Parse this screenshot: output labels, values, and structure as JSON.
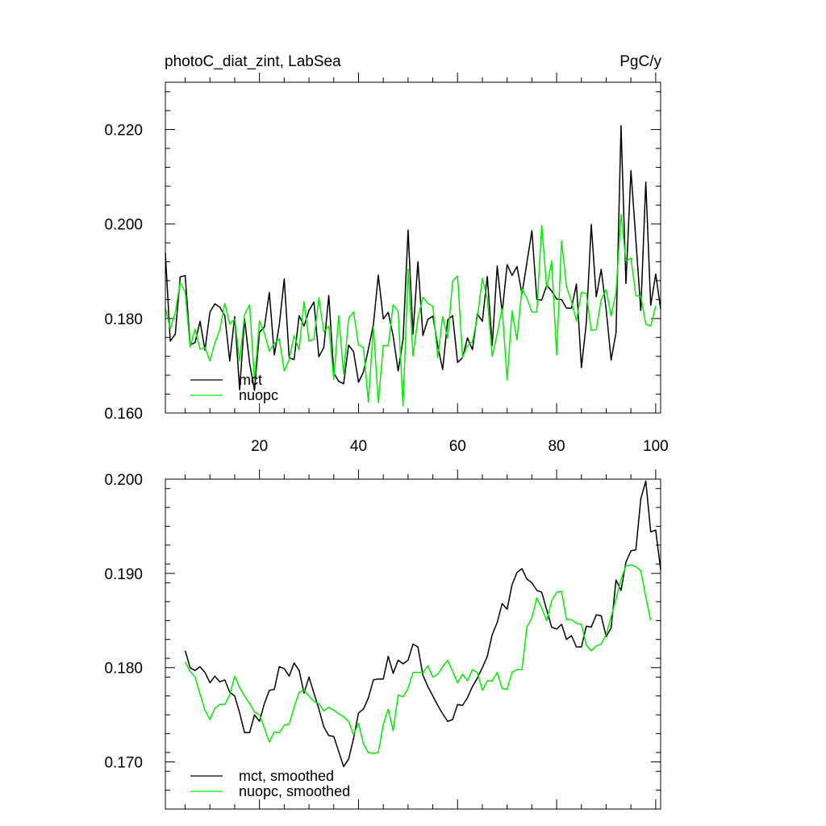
{
  "chart_data": [
    {
      "type": "line",
      "title": "photoC_diat_zint, LabSea",
      "units": "PgC/y",
      "xlim": [
        1,
        101
      ],
      "ylim": [
        0.16,
        0.23
      ],
      "x_ticks": [
        20,
        40,
        60,
        80,
        100
      ],
      "x_tick_labels": [
        "20",
        "40",
        "60",
        "80",
        "100"
      ],
      "y_ticks": [
        0.16,
        0.18,
        0.2,
        0.22
      ],
      "y_tick_labels": [
        "0.160",
        "0.180",
        "0.200",
        "0.220"
      ],
      "legend_position": "bottom-left",
      "x_start": 1,
      "series": [
        {
          "name": "mct",
          "color": "#000000",
          "values": [
            0.1938,
            0.1752,
            0.1767,
            0.1888,
            0.1891,
            0.1744,
            0.1749,
            0.1794,
            0.1733,
            0.1814,
            0.1831,
            0.1824,
            0.1806,
            0.171,
            0.1804,
            0.1649,
            0.1799,
            0.1706,
            0.1648,
            0.1771,
            0.1782,
            0.1855,
            0.1723,
            0.1786,
            0.1884,
            0.1717,
            0.1713,
            0.1806,
            0.1784,
            0.1817,
            0.1835,
            0.1719,
            0.1739,
            0.1849,
            0.1685,
            0.1667,
            0.1662,
            0.1744,
            0.173,
            0.1665,
            0.1687,
            0.1735,
            0.1787,
            0.1892,
            0.1799,
            0.1813,
            0.1763,
            0.1689,
            0.1756,
            0.1987,
            0.1767,
            0.192,
            0.1764,
            0.1798,
            0.1805,
            0.1742,
            0.1692,
            0.1797,
            0.1806,
            0.1707,
            0.1717,
            0.1759,
            0.1734,
            0.181,
            0.1794,
            0.1889,
            0.1743,
            0.1911,
            0.1812,
            0.1914,
            0.1891,
            0.191,
            0.1852,
            0.1918,
            0.1986,
            0.184,
            0.1839,
            0.1871,
            0.1858,
            0.1841,
            0.184,
            0.1822,
            0.1822,
            0.1873,
            0.1696,
            0.1791,
            0.1999,
            0.1846,
            0.1904,
            0.1819,
            0.1712,
            0.177,
            0.2208,
            0.1874,
            0.2113,
            0.1966,
            0.1817,
            0.2089,
            0.1828,
            0.1894,
            0.182
          ]
        },
        {
          "name": "nuopc",
          "color": "#00ee00",
          "values": [
            0.1822,
            0.1778,
            0.1813,
            0.1876,
            0.1856,
            0.1739,
            0.1778,
            0.1735,
            0.1739,
            0.171,
            0.1748,
            0.1776,
            0.1832,
            0.1788,
            0.1799,
            0.171,
            0.1808,
            0.1829,
            0.167,
            0.1795,
            0.1769,
            0.1731,
            0.1747,
            0.1757,
            0.1689,
            0.1713,
            0.1764,
            0.1733,
            0.1836,
            0.1752,
            0.1756,
            0.1844,
            0.1772,
            0.1784,
            0.1671,
            0.1806,
            0.1683,
            0.18,
            0.1814,
            0.1744,
            0.1739,
            0.1623,
            0.1782,
            0.1622,
            0.1743,
            0.1742,
            0.1829,
            0.1815,
            0.1615,
            0.1904,
            0.172,
            0.18,
            0.1845,
            0.1832,
            0.1826,
            0.1717,
            0.1804,
            0.1758,
            0.1879,
            0.189,
            0.1717,
            0.1743,
            0.1751,
            0.1802,
            0.1885,
            0.1842,
            0.172,
            0.1768,
            0.1822,
            0.167,
            0.1816,
            0.1755,
            0.1864,
            0.1843,
            0.1814,
            0.1814,
            0.1997,
            0.1863,
            0.1922,
            0.1723,
            0.1964,
            0.1867,
            0.1836,
            0.1795,
            0.1856,
            0.1853,
            0.1775,
            0.1776,
            0.184,
            0.1861,
            0.1805,
            0.1855,
            0.202,
            0.1921,
            0.1928,
            0.1848,
            0.1847,
            0.1788,
            0.1784,
            0.1826
          ]
        }
      ]
    },
    {
      "type": "line",
      "title": "",
      "units": "",
      "xlim": [
        1,
        101
      ],
      "ylim": [
        0.165,
        0.2
      ],
      "x_ticks": [
        20,
        40,
        60,
        80,
        100
      ],
      "x_tick_labels": [],
      "y_ticks": [
        0.17,
        0.18,
        0.19,
        0.2
      ],
      "y_tick_labels": [
        "0.170",
        "0.180",
        "0.190",
        "0.200"
      ],
      "legend_position": "bottom-left",
      "x_start": 5,
      "series": [
        {
          "name": "mct, smoothed",
          "color": "#000000",
          "values": [
            0.1818,
            0.18,
            0.1797,
            0.1801,
            0.1795,
            0.1784,
            0.1791,
            0.1785,
            0.1787,
            0.1774,
            0.177,
            0.1752,
            0.1731,
            0.1731,
            0.175,
            0.1743,
            0.1762,
            0.1776,
            0.1777,
            0.1801,
            0.1799,
            0.1791,
            0.1805,
            0.1797,
            0.1773,
            0.179,
            0.1773,
            0.1756,
            0.1737,
            0.1728,
            0.1727,
            0.1711,
            0.1695,
            0.1703,
            0.1725,
            0.1752,
            0.1756,
            0.1768,
            0.1787,
            0.1788,
            0.1788,
            0.1812,
            0.1794,
            0.1808,
            0.1804,
            0.1808,
            0.1825,
            0.1822,
            0.1792,
            0.178,
            0.177,
            0.176,
            0.1751,
            0.1743,
            0.1745,
            0.1761,
            0.176,
            0.1768,
            0.178,
            0.1789,
            0.18,
            0.1812,
            0.1835,
            0.1848,
            0.1868,
            0.1862,
            0.1888,
            0.1901,
            0.1905,
            0.1894,
            0.189,
            0.1882,
            0.188,
            0.1861,
            0.1843,
            0.1841,
            0.1846,
            0.183,
            0.1834,
            0.1822,
            0.1822,
            0.1844,
            0.1843,
            0.1856,
            0.1855,
            0.1833,
            0.1842,
            0.1893,
            0.1882,
            0.1912,
            0.1924,
            0.1925,
            0.1979,
            0.1998,
            0.1944,
            0.1946,
            0.1904
          ]
        },
        {
          "name": "nuopc, smoothed",
          "color": "#00ee00",
          "values": [
            0.1806,
            0.1796,
            0.179,
            0.1772,
            0.1755,
            0.1745,
            0.1757,
            0.1761,
            0.1761,
            0.1771,
            0.1791,
            0.1779,
            0.177,
            0.1762,
            0.1753,
            0.175,
            0.1736,
            0.1721,
            0.1732,
            0.1731,
            0.1739,
            0.174,
            0.1758,
            0.1774,
            0.1776,
            0.177,
            0.1764,
            0.1762,
            0.1754,
            0.1758,
            0.1755,
            0.1751,
            0.1748,
            0.1743,
            0.1729,
            0.1741,
            0.1719,
            0.171,
            0.1709,
            0.171,
            0.174,
            0.1756,
            0.1733,
            0.1771,
            0.1769,
            0.1778,
            0.1795,
            0.1795,
            0.1795,
            0.1802,
            0.179,
            0.1793,
            0.1801,
            0.1808,
            0.1796,
            0.1784,
            0.1793,
            0.1786,
            0.1798,
            0.1795,
            0.1776,
            0.1786,
            0.1786,
            0.1795,
            0.1778,
            0.1777,
            0.1795,
            0.1798,
            0.1798,
            0.1843,
            0.1853,
            0.1874,
            0.1863,
            0.185,
            0.1871,
            0.188,
            0.1881,
            0.1851,
            0.1851,
            0.1847,
            0.1846,
            0.1824,
            0.1818,
            0.1823,
            0.1825,
            0.1835,
            0.1854,
            0.1873,
            0.1894,
            0.1908,
            0.1909,
            0.1907,
            0.1903,
            0.1875,
            0.185
          ]
        }
      ]
    }
  ]
}
